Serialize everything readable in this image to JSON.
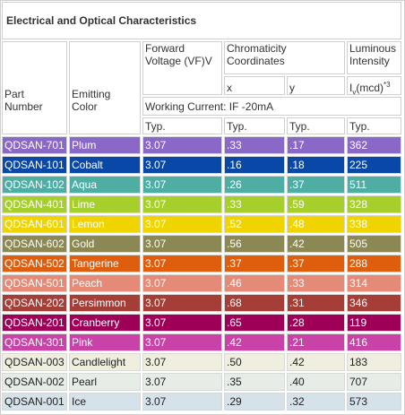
{
  "title": "Electrical and Optical Characteristics",
  "header": {
    "part_number": "Part Number",
    "emitting_color": "Emitting Color",
    "forward_voltage": "Forward Voltage (VF)V",
    "chromaticity": "Chromaticity Coordinates",
    "x": "x",
    "y": "y",
    "luminous": "Luminous Intensity",
    "intensity_unit": {
      "main": "I",
      "sub": "v",
      "unit": "(mcd)",
      "sup": "*3"
    },
    "working_current": "Working Current: IF -20mA",
    "typ": [
      "Typ.",
      "Typ.",
      "Typ.",
      "Typ."
    ]
  },
  "table": {
    "rows": [
      {
        "cells": [
          "QDSAN-701",
          "Plum",
          "3.07",
          ".33",
          ".17",
          "362"
        ],
        "color": "#8a68c8",
        "text_color": "#ffffff"
      },
      {
        "cells": [
          "QDSAN-101",
          "Cobalt",
          "3.07",
          ".16",
          ".18",
          "225"
        ],
        "color": "#0a48a8",
        "text_color": "#ffffff"
      },
      {
        "cells": [
          "QDSAN-102",
          "Aqua",
          "3.07",
          ".26",
          ".37",
          "511"
        ],
        "color": "#4eaea4",
        "text_color": "#ffffff"
      },
      {
        "cells": [
          "QDSAN-401",
          "Lime",
          "3.07",
          ".33",
          ".59",
          "328"
        ],
        "color": "#a6cf2c",
        "text_color": "#ffffff"
      },
      {
        "cells": [
          "QDSAN-601",
          "Lemon",
          "3.07",
          ".52",
          ".48",
          "338"
        ],
        "color": "#f0d400",
        "text_color": "#ffffff"
      },
      {
        "cells": [
          "QDSAN-602",
          "Gold",
          "3.07",
          ".56",
          ".42",
          "505"
        ],
        "color": "#8c8854",
        "text_color": "#ffffff"
      },
      {
        "cells": [
          "QDSAN-502",
          "Tangerine",
          "3.07",
          ".37",
          ".37",
          "288"
        ],
        "color": "#de5e0e",
        "text_color": "#ffffff"
      },
      {
        "cells": [
          "QDSAN-501",
          "Peach",
          "3.07",
          ".46",
          ".33",
          "314"
        ],
        "color": "#e68a78",
        "text_color": "#ffffff"
      },
      {
        "cells": [
          "QDSAN-202",
          "Persimmon",
          "3.07",
          ".68",
          ".31",
          "346"
        ],
        "color": "#a63e38",
        "text_color": "#ffffff"
      },
      {
        "cells": [
          "QDSAN-201",
          "Cranberry",
          "3.07",
          ".65",
          ".28",
          "119"
        ],
        "color": "#9e0058",
        "text_color": "#ffffff"
      },
      {
        "cells": [
          "QDSAN-301",
          "Pink",
          "3.07",
          ".42",
          ".21",
          "416"
        ],
        "color": "#c842a8",
        "text_color": "#ffffff"
      },
      {
        "cells": [
          "QDSAN-003",
          "Candlelight",
          "3.07",
          ".50",
          ".42",
          "183"
        ],
        "color": "#efeedf",
        "text_color": "#222222"
      },
      {
        "cells": [
          "QDSAN-002",
          "Pearl",
          "3.07",
          ".35",
          ".40",
          "707"
        ],
        "color": "#e6ede6",
        "text_color": "#222222"
      },
      {
        "cells": [
          "QDSAN-001",
          "Ice",
          "3.07",
          ".29",
          ".32",
          "573"
        ],
        "color": "#d6e2ea",
        "text_color": "#222222"
      }
    ]
  }
}
